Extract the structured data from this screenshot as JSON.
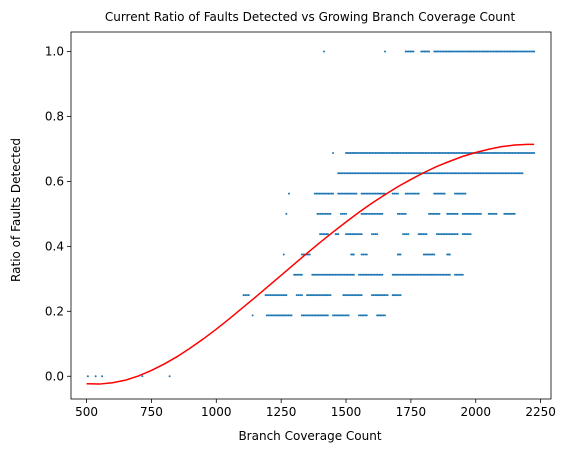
{
  "chart_data": {
    "type": "scatter",
    "title": "Current Ratio of Faults Detected vs Growing Branch Coverage Count",
    "xlabel": "Branch Coverage Count",
    "ylabel": "Ratio of Faults Detected",
    "xlim": [
      440,
      2290
    ],
    "ylim": [
      -0.07,
      1.06
    ],
    "xticks": [
      500,
      750,
      1000,
      1250,
      1500,
      1750,
      2000,
      2250
    ],
    "yticks": [
      0.0,
      0.2,
      0.4,
      0.6,
      0.8,
      1.0
    ],
    "grid": false,
    "legend": "none",
    "point_color": "#1f77b4",
    "fit_color": "#ff0000",
    "points": [
      {
        "y": 0.0,
        "segments": [
          [
            505,
            505
          ],
          [
            535,
            535
          ],
          [
            560,
            560
          ],
          [
            715,
            715
          ],
          [
            820,
            820
          ]
        ]
      },
      {
        "y": 0.1875,
        "segments": [
          [
            1140,
            1140
          ],
          [
            1195,
            1290
          ],
          [
            1330,
            1430
          ],
          [
            1450,
            1510
          ],
          [
            1550,
            1580
          ],
          [
            1620,
            1650
          ]
        ]
      },
      {
        "y": 0.25,
        "segments": [
          [
            1105,
            1125
          ],
          [
            1190,
            1270
          ],
          [
            1310,
            1330
          ],
          [
            1350,
            1440
          ],
          [
            1490,
            1560
          ],
          [
            1600,
            1660
          ],
          [
            1680,
            1710
          ]
        ]
      },
      {
        "y": 0.3125,
        "segments": [
          [
            1300,
            1330
          ],
          [
            1370,
            1530
          ],
          [
            1550,
            1640
          ],
          [
            1680,
            1900
          ],
          [
            1920,
            1950
          ]
        ]
      },
      {
        "y": 0.375,
        "segments": [
          [
            1260,
            1260
          ],
          [
            1330,
            1360
          ],
          [
            1520,
            1530
          ],
          [
            1560,
            1580
          ],
          [
            1700,
            1710
          ],
          [
            1800,
            1840
          ],
          [
            1890,
            1900
          ]
        ]
      },
      {
        "y": 0.4375,
        "segments": [
          [
            1400,
            1430
          ],
          [
            1460,
            1470
          ],
          [
            1500,
            1560
          ],
          [
            1600,
            1620
          ],
          [
            1720,
            1740
          ],
          [
            1780,
            1810
          ],
          [
            1850,
            1930
          ],
          [
            1950,
            1980
          ]
        ]
      },
      {
        "y": 0.5,
        "segments": [
          [
            1270,
            1270
          ],
          [
            1390,
            1440
          ],
          [
            1480,
            1500
          ],
          [
            1560,
            1640
          ],
          [
            1700,
            1730
          ],
          [
            1820,
            1860
          ],
          [
            1890,
            1930
          ],
          [
            1950,
            2020
          ],
          [
            2050,
            2080
          ],
          [
            2110,
            2150
          ]
        ]
      },
      {
        "y": 0.5625,
        "segments": [
          [
            1280,
            1280
          ],
          [
            1380,
            1450
          ],
          [
            1470,
            1540
          ],
          [
            1560,
            1650
          ],
          [
            1680,
            1700
          ],
          [
            1730,
            1780
          ],
          [
            1840,
            1880
          ],
          [
            1920,
            1960
          ]
        ]
      },
      {
        "y": 0.625,
        "segments": [
          [
            1470,
            2180
          ]
        ]
      },
      {
        "y": 0.6875,
        "segments": [
          [
            1450,
            1450
          ],
          [
            1500,
            2225
          ]
        ]
      },
      {
        "y": 1.0,
        "segments": [
          [
            1415,
            1415
          ],
          [
            1650,
            1650
          ],
          [
            1730,
            1760
          ],
          [
            1790,
            1820
          ],
          [
            1840,
            2225
          ]
        ]
      }
    ],
    "fit_curve": {
      "x": [
        500,
        550,
        600,
        650,
        700,
        750,
        800,
        850,
        900,
        950,
        1000,
        1050,
        1100,
        1150,
        1200,
        1250,
        1300,
        1350,
        1400,
        1450,
        1500,
        1550,
        1600,
        1650,
        1700,
        1750,
        1800,
        1850,
        1900,
        1950,
        2000,
        2050,
        2100,
        2150,
        2200,
        2225
      ],
      "y": [
        -0.023,
        -0.024,
        -0.02,
        -0.012,
        0.001,
        0.018,
        0.038,
        0.061,
        0.087,
        0.115,
        0.145,
        0.177,
        0.21,
        0.243,
        0.277,
        0.311,
        0.345,
        0.379,
        0.412,
        0.444,
        0.475,
        0.505,
        0.533,
        0.559,
        0.584,
        0.606,
        0.627,
        0.646,
        0.662,
        0.677,
        0.689,
        0.699,
        0.707,
        0.712,
        0.714,
        0.714
      ]
    }
  }
}
